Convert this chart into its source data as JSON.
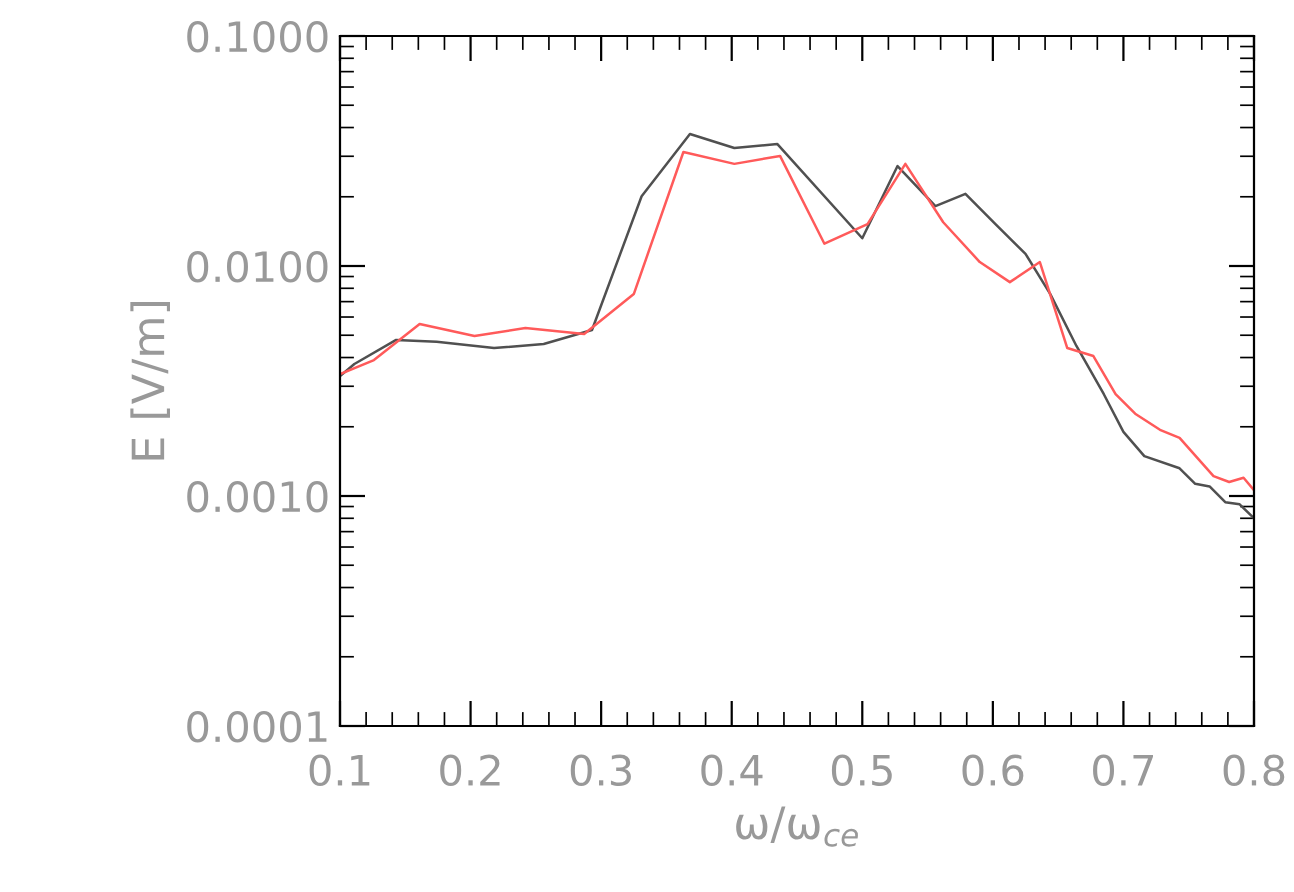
{
  "chart_data": {
    "type": "line",
    "xlabel": "ω/ω$_{ce}$",
    "ylabel": "E [V/m]",
    "log": "y",
    "grid": false,
    "xlim": [
      0.1,
      0.8
    ],
    "xticks": [
      0.1,
      0.2,
      0.3,
      0.4,
      0.5,
      0.6,
      0.7,
      0.8
    ],
    "ylim": [
      0.0001,
      0.1
    ],
    "yticks": [
      {
        "value": 0.0001,
        "label": "0.0001"
      },
      {
        "value": 0.001,
        "label": "0.0010"
      },
      {
        "value": 0.01,
        "label": "0.0100"
      },
      {
        "value": 0.1,
        "label": "0.1000"
      }
    ],
    "series": [
      {
        "color": "#505050",
        "x": [
          0.1,
          0.111,
          0.143,
          0.174,
          0.218,
          0.256,
          0.293,
          0.331,
          0.368,
          0.402,
          0.435,
          0.5,
          0.527,
          0.556,
          0.579,
          0.602,
          0.625,
          0.644,
          0.664,
          0.685,
          0.7,
          0.716,
          0.743,
          0.755,
          0.766,
          0.778,
          0.789,
          0.8
        ],
        "values": [
          0.00332,
          0.00375,
          0.00477,
          0.00468,
          0.0044,
          0.00458,
          0.00527,
          0.0201,
          0.0375,
          0.0326,
          0.0339,
          0.0132,
          0.0272,
          0.0182,
          0.0206,
          0.0152,
          0.0113,
          0.00755,
          0.00449,
          0.00277,
          0.0019,
          0.00149,
          0.00132,
          0.00113,
          0.0011,
          0.00094,
          0.00092,
          0.0008
        ]
      },
      {
        "color": "#ff5a5a",
        "x": [
          0.1,
          0.126,
          0.161,
          0.203,
          0.242,
          0.287,
          0.325,
          0.363,
          0.402,
          0.437,
          0.471,
          0.504,
          0.533,
          0.562,
          0.59,
          0.613,
          0.636,
          0.657,
          0.677,
          0.694,
          0.709,
          0.728,
          0.743,
          0.769,
          0.781,
          0.792,
          0.8
        ],
        "values": [
          0.00339,
          0.0039,
          0.0056,
          0.00496,
          0.00537,
          0.00506,
          0.00755,
          0.0313,
          0.0278,
          0.0301,
          0.0125,
          0.0152,
          0.0278,
          0.0155,
          0.0104,
          0.00851,
          0.0104,
          0.0044,
          0.00406,
          0.00277,
          0.00228,
          0.00194,
          0.00179,
          0.00122,
          0.00115,
          0.0012,
          0.00106
        ]
      }
    ]
  }
}
